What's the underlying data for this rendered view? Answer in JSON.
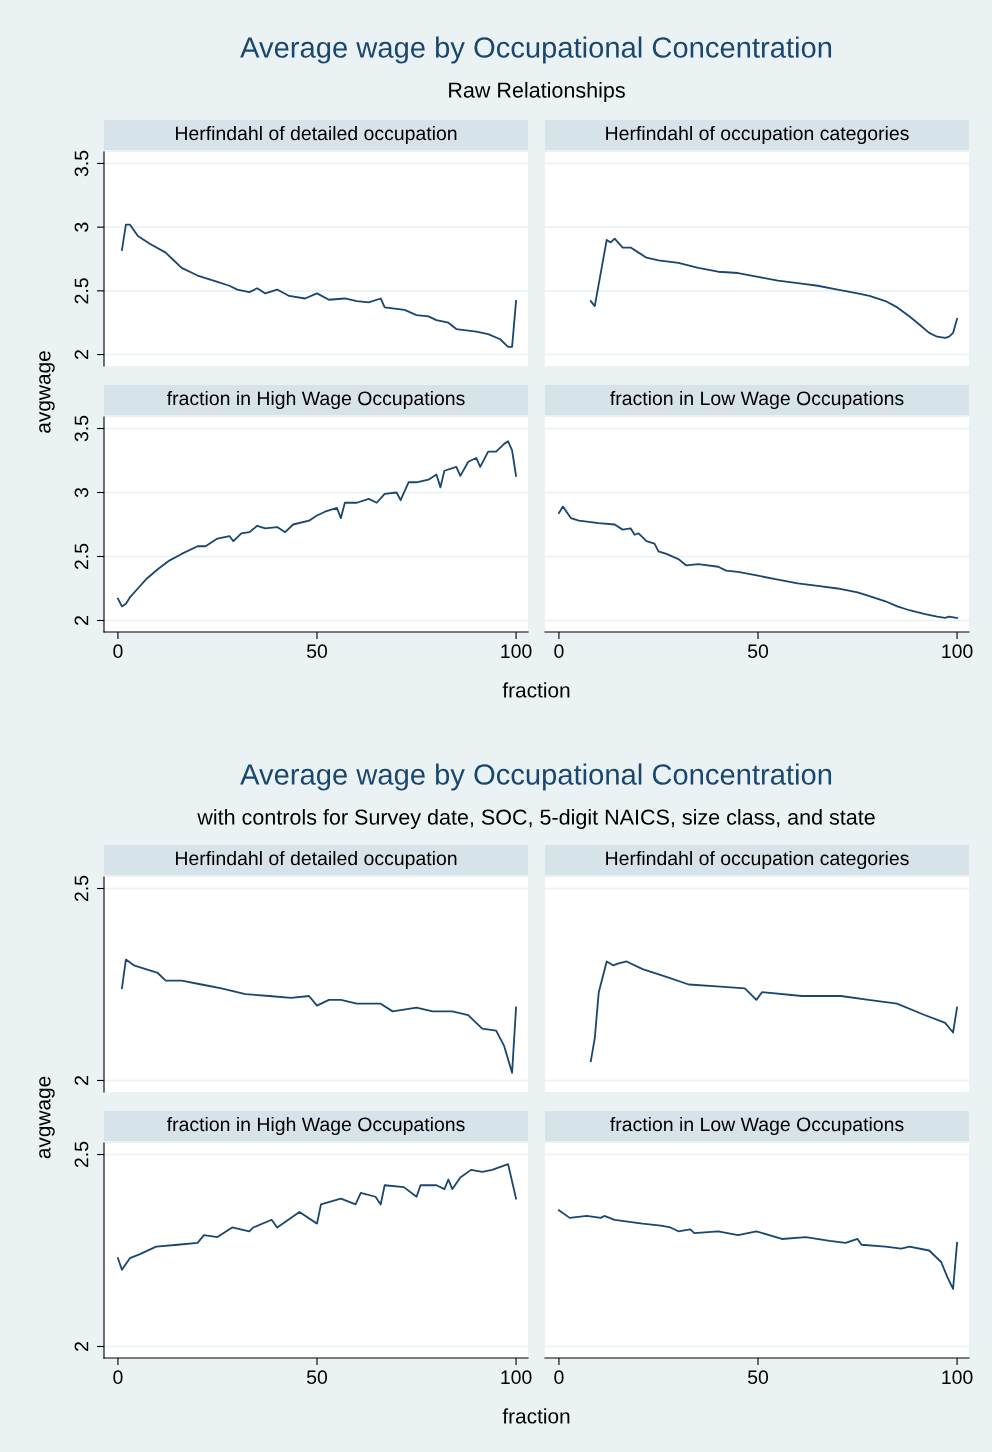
{
  "chart_data": [
    {
      "type": "line",
      "title": "Herfindahl of detailed occupation",
      "annotations": [
        "Average wage by Occupational Concentration",
        "Raw Relationships"
      ],
      "ylabel": "avgwage",
      "xlim": [
        -3.5,
        103
      ],
      "ylim": [
        1.91,
        3.59
      ],
      "xticks": [
        0,
        50,
        100
      ],
      "yticks": [
        2,
        2.5,
        3,
        3.5
      ],
      "grid": "y",
      "tick_labels": "y",
      "series": [
        {
          "color": "#1a476f",
          "x": [
            1,
            2,
            3,
            5,
            8,
            12,
            14,
            16,
            20,
            25,
            28,
            30,
            33,
            35,
            37,
            40,
            43,
            47,
            50,
            53,
            57,
            60,
            63,
            66,
            67,
            72,
            75,
            78,
            80,
            83,
            85,
            90,
            93,
            96,
            98,
            99,
            100
          ],
          "values": [
            2.82,
            3.02,
            3.02,
            2.93,
            2.87,
            2.8,
            2.74,
            2.68,
            2.62,
            2.57,
            2.54,
            2.51,
            2.49,
            2.52,
            2.48,
            2.51,
            2.46,
            2.44,
            2.48,
            2.43,
            2.44,
            2.42,
            2.41,
            2.44,
            2.37,
            2.35,
            2.31,
            2.3,
            2.27,
            2.25,
            2.2,
            2.18,
            2.16,
            2.12,
            2.06,
            2.06,
            2.42
          ]
        }
      ]
    },
    {
      "type": "line",
      "title": "Herfindahl of occupation categories",
      "xlim": [
        -3.5,
        103
      ],
      "ylim": [
        1.91,
        3.59
      ],
      "xticks": [
        0,
        50,
        100
      ],
      "yticks": [
        2,
        2.5,
        3,
        3.5
      ],
      "grid": "y",
      "tick_labels": false,
      "series": [
        {
          "color": "#1a476f",
          "x": [
            8,
            9,
            12,
            13,
            14,
            16,
            18,
            20,
            22,
            25,
            30,
            35,
            40,
            45,
            50,
            55,
            60,
            65,
            70,
            75,
            78,
            82,
            85,
            88,
            90,
            93,
            95,
            97,
            98,
            99,
            100
          ],
          "values": [
            2.42,
            2.38,
            2.9,
            2.88,
            2.91,
            2.84,
            2.84,
            2.8,
            2.76,
            2.74,
            2.72,
            2.68,
            2.65,
            2.64,
            2.61,
            2.58,
            2.56,
            2.54,
            2.51,
            2.48,
            2.46,
            2.42,
            2.37,
            2.3,
            2.25,
            2.17,
            2.14,
            2.13,
            2.14,
            2.17,
            2.28
          ]
        }
      ]
    },
    {
      "type": "line",
      "title": "fraction in High Wage Occupations",
      "xlabel": "fraction",
      "xlim": [
        -3.5,
        103
      ],
      "ylim": [
        1.91,
        3.59
      ],
      "xticks": [
        0,
        50,
        100
      ],
      "yticks": [
        2,
        2.5,
        3,
        3.5
      ],
      "grid": "y",
      "series": [
        {
          "color": "#1a476f",
          "x": [
            0,
            1,
            2,
            3,
            5,
            7,
            10,
            13,
            16,
            20,
            22,
            25,
            28,
            29,
            31,
            33,
            35,
            37,
            40,
            42,
            44,
            48,
            50,
            52,
            55,
            56,
            57,
            60,
            63,
            65,
            67,
            70,
            71,
            73,
            75,
            78,
            80,
            81,
            82,
            85,
            86,
            88,
            90,
            91,
            93,
            95,
            97,
            98,
            99,
            100
          ],
          "values": [
            2.17,
            2.11,
            2.13,
            2.18,
            2.25,
            2.32,
            2.4,
            2.47,
            2.52,
            2.58,
            2.58,
            2.64,
            2.66,
            2.62,
            2.68,
            2.69,
            2.74,
            2.72,
            2.73,
            2.69,
            2.75,
            2.78,
            2.82,
            2.85,
            2.88,
            2.8,
            2.92,
            2.92,
            2.95,
            2.92,
            2.99,
            3.0,
            2.94,
            3.08,
            3.08,
            3.1,
            3.14,
            3.04,
            3.17,
            3.2,
            3.13,
            3.24,
            3.27,
            3.2,
            3.32,
            3.32,
            3.38,
            3.4,
            3.33,
            3.13
          ]
        }
      ]
    },
    {
      "type": "line",
      "title": "fraction in Low Wage Occupations",
      "xlim": [
        -3.5,
        103
      ],
      "ylim": [
        1.91,
        3.59
      ],
      "xticks": [
        0,
        50,
        100
      ],
      "yticks": [
        2,
        2.5,
        3,
        3.5
      ],
      "grid": "y",
      "tick_labels": "x",
      "series": [
        {
          "color": "#1a476f",
          "x": [
            0,
            1,
            3,
            5,
            10,
            14,
            16,
            18,
            19,
            20,
            22,
            24,
            25,
            27,
            30,
            32,
            35,
            40,
            42,
            45,
            50,
            55,
            60,
            65,
            70,
            75,
            78,
            82,
            85,
            88,
            92,
            95,
            97,
            98,
            100
          ],
          "values": [
            2.84,
            2.89,
            2.8,
            2.78,
            2.76,
            2.75,
            2.71,
            2.72,
            2.67,
            2.68,
            2.62,
            2.6,
            2.54,
            2.52,
            2.48,
            2.43,
            2.44,
            2.42,
            2.39,
            2.38,
            2.35,
            2.32,
            2.29,
            2.27,
            2.25,
            2.22,
            2.19,
            2.15,
            2.11,
            2.08,
            2.05,
            2.03,
            2.02,
            2.03,
            2.02
          ]
        }
      ]
    },
    {
      "type": "line",
      "title": "Herfindahl of detailed occupation",
      "annotations": [
        "Average wage by Occupational Concentration",
        "with controls for Survey date, SOC, 5-digit NAICS, size class, and state"
      ],
      "ylabel": "avgwage",
      "xlim": [
        -3.5,
        103
      ],
      "ylim": [
        1.97,
        2.53
      ],
      "xticks": [
        0,
        50,
        100
      ],
      "yticks": [
        2,
        2.5
      ],
      "grid": "y",
      "tick_labels": "y",
      "series": [
        {
          "color": "#1a476f",
          "x": [
            1,
            2,
            4,
            7,
            10,
            12,
            16,
            21,
            26,
            32,
            38,
            43.5,
            48,
            50,
            53,
            56,
            60,
            66,
            69,
            75,
            79,
            84,
            88,
            91.5,
            95,
            97,
            99,
            100
          ],
          "values": [
            2.24,
            2.315,
            2.3,
            2.29,
            2.28,
            2.26,
            2.26,
            2.25,
            2.24,
            2.225,
            2.22,
            2.215,
            2.22,
            2.195,
            2.21,
            2.21,
            2.2,
            2.2,
            2.18,
            2.19,
            2.18,
            2.18,
            2.17,
            2.135,
            2.13,
            2.09,
            2.02,
            2.19
          ]
        }
      ]
    },
    {
      "type": "line",
      "title": "Herfindahl of occupation categories",
      "xlim": [
        -3.5,
        103
      ],
      "ylim": [
        1.97,
        2.53
      ],
      "xticks": [
        0,
        50,
        100
      ],
      "yticks": [
        2,
        2.5
      ],
      "grid": "y",
      "tick_labels": false,
      "series": [
        {
          "color": "#1a476f",
          "x": [
            8,
            9,
            10,
            12,
            13.6,
            15,
            17,
            21,
            27,
            32.6,
            39.7,
            46.7,
            49.6,
            51,
            61,
            70.8,
            77.8,
            84.9,
            92,
            97,
            99,
            100
          ],
          "values": [
            2.05,
            2.11,
            2.23,
            2.31,
            2.3,
            2.305,
            2.31,
            2.29,
            2.27,
            2.25,
            2.245,
            2.24,
            2.21,
            2.23,
            2.22,
            2.22,
            2.21,
            2.2,
            2.17,
            2.15,
            2.125,
            2.19
          ]
        }
      ]
    },
    {
      "type": "line",
      "title": "fraction in High Wage Occupations",
      "xlabel": "fraction",
      "xlim": [
        -3.5,
        103
      ],
      "ylim": [
        1.97,
        2.53
      ],
      "xticks": [
        0,
        50,
        100
      ],
      "yticks": [
        2,
        2.5
      ],
      "grid": "y",
      "series": [
        {
          "color": "#1a476f",
          "x": [
            0,
            1,
            3,
            5.4,
            9.6,
            15,
            20,
            21.6,
            25,
            28.7,
            33,
            34,
            38.6,
            40,
            45.6,
            50,
            51,
            56,
            59.7,
            61,
            64.7,
            66,
            67,
            71.8,
            75,
            76,
            80,
            82,
            83,
            84,
            86,
            88.7,
            91.5,
            94,
            98,
            100
          ],
          "values": [
            2.23,
            2.2,
            2.23,
            2.24,
            2.26,
            2.265,
            2.27,
            2.29,
            2.285,
            2.31,
            2.3,
            2.31,
            2.33,
            2.31,
            2.35,
            2.32,
            2.37,
            2.385,
            2.37,
            2.4,
            2.39,
            2.37,
            2.42,
            2.415,
            2.39,
            2.42,
            2.42,
            2.41,
            2.435,
            2.41,
            2.44,
            2.46,
            2.455,
            2.46,
            2.475,
            2.385
          ]
        }
      ]
    },
    {
      "type": "line",
      "title": "fraction in Low Wage Occupations",
      "xlim": [
        -3.5,
        103
      ],
      "ylim": [
        1.97,
        2.53
      ],
      "xticks": [
        0,
        50,
        100
      ],
      "yticks": [
        2,
        2.5
      ],
      "grid": "y",
      "tick_labels": "x",
      "series": [
        {
          "color": "#1a476f",
          "x": [
            0,
            2.7,
            7,
            10.5,
            11.4,
            14,
            21,
            25.6,
            28,
            30,
            33,
            34,
            40,
            45,
            49.6,
            56,
            62,
            68,
            72,
            75,
            76,
            82,
            86,
            88,
            93,
            96,
            97.6,
            99,
            100
          ],
          "values": [
            2.355,
            2.335,
            2.34,
            2.335,
            2.34,
            2.33,
            2.32,
            2.315,
            2.31,
            2.3,
            2.305,
            2.295,
            2.3,
            2.29,
            2.3,
            2.28,
            2.285,
            2.275,
            2.27,
            2.28,
            2.265,
            2.26,
            2.255,
            2.26,
            2.25,
            2.22,
            2.18,
            2.15,
            2.27
          ]
        }
      ]
    }
  ]
}
